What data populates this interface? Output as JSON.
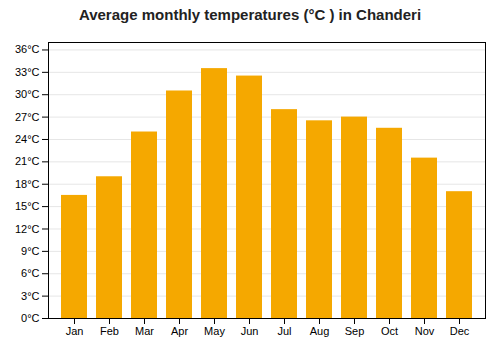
{
  "chart_data": {
    "type": "bar",
    "title": "Average monthly temperatures (°C ) in Chanderi",
    "categories": [
      "Jan",
      "Feb",
      "Mar",
      "Apr",
      "May",
      "Jun",
      "Jul",
      "Aug",
      "Sep",
      "Oct",
      "Nov",
      "Dec"
    ],
    "values": [
      16.5,
      19.0,
      25.0,
      30.5,
      33.5,
      32.5,
      28.0,
      26.5,
      27.0,
      25.5,
      21.5,
      17.0
    ],
    "color": "#F5A800",
    "ylim": [
      0,
      37
    ],
    "yticks": [
      {
        "value": 0,
        "label": "0°C"
      },
      {
        "value": 3,
        "label": "3°C"
      },
      {
        "value": 6,
        "label": "6°C"
      },
      {
        "value": 9,
        "label": "9°C"
      },
      {
        "value": 12,
        "label": "12°C"
      },
      {
        "value": 15,
        "label": "15°C"
      },
      {
        "value": 18,
        "label": "18°C"
      },
      {
        "value": 21,
        "label": "21°C"
      },
      {
        "value": 24,
        "label": "24°C"
      },
      {
        "value": 27,
        "label": "27°C"
      },
      {
        "value": 30,
        "label": "30°C"
      },
      {
        "value": 33,
        "label": "33°C"
      },
      {
        "value": 36,
        "label": "36°C"
      }
    ],
    "grid": true
  }
}
